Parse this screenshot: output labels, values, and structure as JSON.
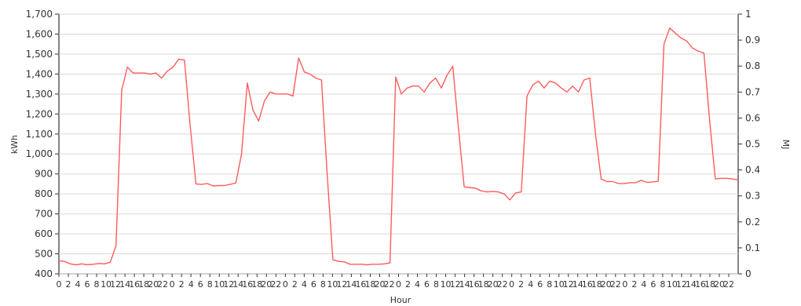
{
  "chart_data": {
    "type": "line",
    "xlabel": "Hour",
    "ylabel": "kWh",
    "y2label": "MJ",
    "ylim": [
      400,
      1700
    ],
    "y2lim": [
      0,
      1
    ],
    "yticks": [
      "400",
      "500",
      "600",
      "700",
      "800",
      "900",
      "1,000",
      "1,100",
      "1,200",
      "1,300",
      "1,400",
      "1,500",
      "1,600",
      "1,700"
    ],
    "y2ticks": [
      "0",
      "0.1",
      "0.2",
      "0.3",
      "0.4",
      "0.5",
      "0.6",
      "0.7",
      "0.8",
      "0.9",
      "1"
    ],
    "xticks": [
      "0",
      "2",
      "4",
      "6",
      "8",
      "10",
      "12",
      "14",
      "16",
      "18",
      "20",
      "22",
      "0",
      "2",
      "4",
      "6",
      "8",
      "10",
      "12",
      "14",
      "16",
      "18",
      "20",
      "22",
      "0",
      "2",
      "4",
      "6",
      "8",
      "10",
      "12",
      "14",
      "16",
      "18",
      "20",
      "22",
      "0",
      "2",
      "4",
      "6",
      "8",
      "10",
      "12",
      "14",
      "16",
      "18",
      "20",
      "22",
      "0",
      "2",
      "4",
      "6",
      "8",
      "10",
      "12",
      "14",
      "16",
      "18",
      "20",
      "22",
      "0",
      "2",
      "4",
      "6",
      "8",
      "10",
      "12",
      "14",
      "16",
      "18",
      "20",
      "22"
    ],
    "grid": true,
    "series": [
      {
        "color": "#ff5c5c",
        "values": [
          465,
          462,
          450,
          445,
          450,
          445,
          448,
          452,
          450,
          458,
          540,
          1320,
          1435,
          1405,
          1405,
          1405,
          1400,
          1405,
          1380,
          1415,
          1435,
          1475,
          1470,
          1140,
          850,
          848,
          852,
          840,
          842,
          842,
          848,
          855,
          1000,
          1355,
          1220,
          1165,
          1265,
          1310,
          1300,
          1300,
          1300,
          1290,
          1480,
          1410,
          1400,
          1380,
          1370,
          900,
          470,
          462,
          460,
          448,
          448,
          448,
          445,
          448,
          448,
          450,
          455,
          1385,
          1300,
          1330,
          1340,
          1340,
          1310,
          1355,
          1380,
          1330,
          1395,
          1440,
          1130,
          835,
          832,
          828,
          815,
          810,
          812,
          810,
          800,
          770,
          805,
          810,
          1290,
          1345,
          1365,
          1330,
          1365,
          1355,
          1330,
          1310,
          1340,
          1310,
          1370,
          1380,
          1100,
          875,
          862,
          862,
          852,
          852,
          856,
          856,
          868,
          858,
          860,
          863,
          1550,
          1630,
          1605,
          1580,
          1565,
          1530,
          1515,
          1505,
          1165,
          875,
          878,
          878,
          875,
          870
        ]
      }
    ]
  }
}
